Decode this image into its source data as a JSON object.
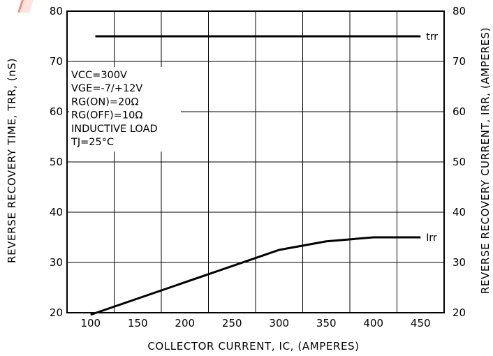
{
  "chart_data": {
    "type": "line",
    "title": "",
    "xlabel": "COLLECTOR CURRENT, IC, (AMPERES)",
    "ylabel_left": "REVERSE RECOVERY TIME, TRR, (nS)",
    "ylabel_right": "REVERSE RECOVERY CURRENT, IRR, (AMPERES)",
    "xlim": [
      75,
      475
    ],
    "ylim": [
      20,
      80
    ],
    "x_ticks": [
      100,
      150,
      200,
      250,
      300,
      350,
      400,
      450
    ],
    "y_ticks": [
      20,
      30,
      40,
      50,
      60,
      70,
      80
    ],
    "grid": true,
    "annotation_lines": [
      "VCC=300V",
      "VGE=-7/+12V",
      "RG(ON)=20Ω",
      "RG(OFF)=10Ω",
      "INDUCTIVE LOAD",
      "TJ=25°C"
    ],
    "series": [
      {
        "name": "trr",
        "x": [
          105,
          450
        ],
        "y": [
          75,
          75
        ]
      },
      {
        "name": "Irr",
        "x": [
          100,
          300,
          350,
          400,
          450
        ],
        "y": [
          19.6,
          32.5,
          34.2,
          35.0,
          35.0
        ]
      }
    ]
  }
}
